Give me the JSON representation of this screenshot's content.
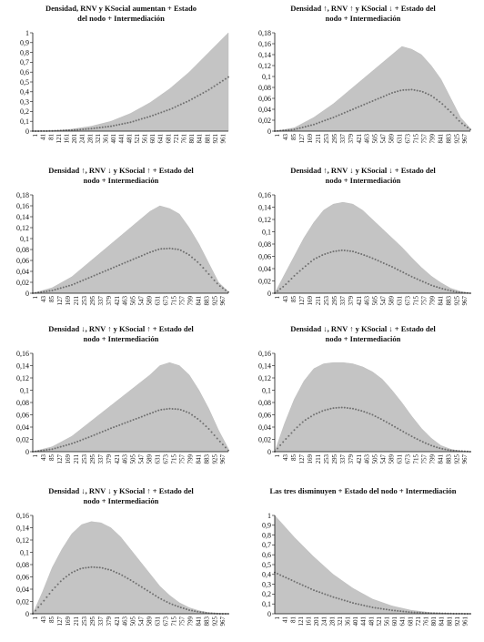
{
  "chart_data": [
    {
      "type": "area",
      "title": "Densidad, RNV y KSocial aumentan + Estado\ndel nodo + Intermediación",
      "x_ticks": [
        "1",
        "41",
        "81",
        "121",
        "161",
        "201",
        "241",
        "281",
        "321",
        "361",
        "401",
        "441",
        "481",
        "521",
        "561",
        "601",
        "641",
        "681",
        "721",
        "761",
        "801",
        "841",
        "881",
        "921",
        "961"
      ],
      "y_ticks": [
        "0",
        "0,1",
        "0,2",
        "0,3",
        "0,4",
        "0,5",
        "0,6",
        "0,7",
        "0,8",
        "0,9",
        "1"
      ],
      "ylim": [
        0,
        1
      ],
      "xlim": [
        1,
        1000
      ],
      "series": [
        {
          "style": "area",
          "x": [
            1,
            100,
            200,
            300,
            400,
            500,
            600,
            700,
            800,
            900,
            1000
          ],
          "values": [
            0,
            0.004,
            0.02,
            0.05,
            0.1,
            0.18,
            0.29,
            0.43,
            0.6,
            0.8,
            1.0
          ]
        },
        {
          "style": "dotted",
          "x": [
            1,
            100,
            200,
            300,
            400,
            500,
            600,
            700,
            800,
            900,
            1000
          ],
          "values": [
            0,
            0.002,
            0.01,
            0.025,
            0.05,
            0.09,
            0.15,
            0.22,
            0.31,
            0.42,
            0.55
          ]
        }
      ]
    },
    {
      "type": "area",
      "title": "Densidad ↑, RNV ↑ y KSocial ↓ + Estado del\nnodo + Intermediación",
      "x_ticks": [
        "1",
        "43",
        "85",
        "127",
        "169",
        "211",
        "253",
        "295",
        "337",
        "379",
        "421",
        "463",
        "505",
        "547",
        "589",
        "631",
        "673",
        "715",
        "757",
        "799",
        "841",
        "883",
        "925",
        "967"
      ],
      "y_ticks": [
        "0",
        "0,02",
        "0,04",
        "0,06",
        "0,08",
        "0,1",
        "0,12",
        "0,14",
        "0,16",
        "0,18"
      ],
      "ylim": [
        0,
        0.18
      ],
      "xlim": [
        1,
        1000
      ],
      "series": [
        {
          "style": "area",
          "x": [
            1,
            100,
            200,
            300,
            400,
            500,
            600,
            650,
            700,
            750,
            800,
            850,
            900,
            950,
            1000
          ],
          "values": [
            0,
            0.006,
            0.025,
            0.05,
            0.08,
            0.11,
            0.14,
            0.155,
            0.15,
            0.14,
            0.12,
            0.095,
            0.06,
            0.025,
            0.005
          ]
        },
        {
          "style": "dotted",
          "x": [
            1,
            100,
            200,
            300,
            400,
            500,
            600,
            650,
            700,
            750,
            800,
            850,
            900,
            950,
            1000
          ],
          "values": [
            0,
            0.003,
            0.012,
            0.025,
            0.04,
            0.055,
            0.07,
            0.075,
            0.076,
            0.073,
            0.065,
            0.052,
            0.035,
            0.016,
            0.003
          ]
        }
      ]
    },
    {
      "type": "area",
      "title": "Densidad ↑, RNV ↓ y KSocial ↑ + Estado del\nnodo + Intermediación",
      "x_ticks": [
        "1",
        "43",
        "85",
        "127",
        "169",
        "211",
        "253",
        "295",
        "337",
        "379",
        "421",
        "463",
        "505",
        "547",
        "589",
        "631",
        "673",
        "715",
        "757",
        "799",
        "841",
        "883",
        "925",
        "967"
      ],
      "y_ticks": [
        "0",
        "0,02",
        "0,04",
        "0,06",
        "0,08",
        "0,1",
        "0,12",
        "0,14",
        "0,16",
        "0,18"
      ],
      "ylim": [
        0,
        0.18
      ],
      "xlim": [
        1,
        1000
      ],
      "series": [
        {
          "style": "area",
          "x": [
            1,
            100,
            200,
            300,
            400,
            500,
            600,
            650,
            700,
            750,
            800,
            850,
            900,
            950,
            1000
          ],
          "values": [
            0,
            0.01,
            0.03,
            0.06,
            0.09,
            0.12,
            0.15,
            0.16,
            0.155,
            0.145,
            0.12,
            0.09,
            0.055,
            0.02,
            0.003
          ]
        },
        {
          "style": "dotted",
          "x": [
            1,
            100,
            200,
            300,
            400,
            500,
            600,
            650,
            700,
            750,
            800,
            850,
            900,
            950,
            1000
          ],
          "values": [
            0,
            0.005,
            0.015,
            0.03,
            0.045,
            0.06,
            0.075,
            0.081,
            0.082,
            0.08,
            0.07,
            0.055,
            0.035,
            0.015,
            0.002
          ]
        }
      ]
    },
    {
      "type": "area",
      "title": "Densidad ↑, RNV ↓ y KSocial ↓ + Estado del\nnodo + Intermediación",
      "x_ticks": [
        "1",
        "43",
        "85",
        "127",
        "169",
        "211",
        "253",
        "295",
        "337",
        "379",
        "421",
        "463",
        "505",
        "547",
        "589",
        "631",
        "673",
        "715",
        "757",
        "799",
        "841",
        "883",
        "925",
        "967"
      ],
      "y_ticks": [
        "0",
        "0,02",
        "0,04",
        "0,06",
        "0,08",
        "0,1",
        "0,12",
        "0,14",
        "0,16"
      ],
      "ylim": [
        0,
        0.16
      ],
      "xlim": [
        1,
        1000
      ],
      "series": [
        {
          "style": "area",
          "x": [
            1,
            50,
            100,
            150,
            200,
            250,
            300,
            350,
            400,
            450,
            500,
            550,
            600,
            650,
            700,
            750,
            800,
            850,
            900,
            950,
            1000
          ],
          "values": [
            0,
            0.03,
            0.06,
            0.09,
            0.115,
            0.135,
            0.145,
            0.148,
            0.145,
            0.135,
            0.12,
            0.105,
            0.09,
            0.075,
            0.058,
            0.042,
            0.028,
            0.017,
            0.008,
            0.003,
            0
          ]
        },
        {
          "style": "dotted",
          "x": [
            1,
            50,
            100,
            150,
            200,
            250,
            300,
            350,
            400,
            450,
            500,
            550,
            600,
            650,
            700,
            750,
            800,
            850,
            900,
            950,
            1000
          ],
          "values": [
            0,
            0.012,
            0.028,
            0.042,
            0.055,
            0.063,
            0.068,
            0.07,
            0.068,
            0.063,
            0.057,
            0.05,
            0.043,
            0.035,
            0.027,
            0.02,
            0.013,
            0.008,
            0.004,
            0.001,
            0
          ]
        }
      ]
    },
    {
      "type": "area",
      "title": "Densidad ↓, RNV ↑ y KSocial ↑ + Estado del\nnodo + Intermediación",
      "x_ticks": [
        "1",
        "43",
        "85",
        "127",
        "169",
        "211",
        "253",
        "295",
        "337",
        "379",
        "421",
        "463",
        "505",
        "547",
        "589",
        "631",
        "673",
        "715",
        "757",
        "799",
        "841",
        "883",
        "925",
        "967"
      ],
      "y_ticks": [
        "0",
        "0,02",
        "0,04",
        "0,06",
        "0,08",
        "0,1",
        "0,12",
        "0,14",
        "0,16"
      ],
      "ylim": [
        0,
        0.16
      ],
      "xlim": [
        1,
        1000
      ],
      "series": [
        {
          "style": "area",
          "x": [
            1,
            100,
            200,
            300,
            400,
            500,
            600,
            650,
            700,
            750,
            800,
            850,
            900,
            950,
            1000
          ],
          "values": [
            0,
            0.008,
            0.025,
            0.05,
            0.075,
            0.1,
            0.125,
            0.14,
            0.145,
            0.14,
            0.125,
            0.1,
            0.07,
            0.035,
            0.005
          ]
        },
        {
          "style": "dotted",
          "x": [
            1,
            100,
            200,
            300,
            400,
            500,
            600,
            650,
            700,
            750,
            800,
            850,
            900,
            950,
            1000
          ],
          "values": [
            0,
            0.004,
            0.013,
            0.025,
            0.038,
            0.05,
            0.062,
            0.068,
            0.07,
            0.069,
            0.063,
            0.052,
            0.037,
            0.019,
            0.002
          ]
        }
      ]
    },
    {
      "type": "area",
      "title": "Densidad ↓, RNV ↑ y KSocial ↓ + Estado del\nnodo + Intermediación",
      "x_ticks": [
        "1",
        "43",
        "85",
        "127",
        "169",
        "211",
        "253",
        "295",
        "337",
        "379",
        "421",
        "463",
        "505",
        "547",
        "589",
        "631",
        "673",
        "715",
        "757",
        "799",
        "841",
        "883",
        "925",
        "967"
      ],
      "y_ticks": [
        "0",
        "0,02",
        "0,04",
        "0,06",
        "0,08",
        "0,1",
        "0,12",
        "0,14",
        "0,16"
      ],
      "ylim": [
        0,
        0.16
      ],
      "xlim": [
        1,
        1000
      ],
      "series": [
        {
          "style": "area",
          "x": [
            1,
            50,
            100,
            150,
            200,
            250,
            300,
            350,
            400,
            450,
            500,
            550,
            600,
            650,
            700,
            750,
            800,
            850,
            900,
            950,
            1000
          ],
          "values": [
            0,
            0.045,
            0.085,
            0.115,
            0.135,
            0.143,
            0.145,
            0.145,
            0.143,
            0.138,
            0.13,
            0.118,
            0.1,
            0.08,
            0.058,
            0.038,
            0.022,
            0.01,
            0.004,
            0.001,
            0
          ]
        },
        {
          "style": "dotted",
          "x": [
            1,
            50,
            100,
            150,
            200,
            250,
            300,
            350,
            400,
            450,
            500,
            550,
            600,
            650,
            700,
            750,
            800,
            850,
            900,
            950,
            1000
          ],
          "values": [
            0,
            0.018,
            0.035,
            0.05,
            0.06,
            0.067,
            0.071,
            0.072,
            0.07,
            0.066,
            0.06,
            0.052,
            0.043,
            0.034,
            0.025,
            0.017,
            0.01,
            0.005,
            0.002,
            0.001,
            0
          ]
        }
      ]
    },
    {
      "type": "area",
      "title": "Densidad ↓, RNV ↓ y KSocial ↑ + Estado del\nnodo + Intermediación",
      "x_ticks": [
        "1",
        "43",
        "85",
        "127",
        "169",
        "211",
        "253",
        "295",
        "337",
        "379",
        "421",
        "463",
        "505",
        "547",
        "589",
        "631",
        "673",
        "715",
        "757",
        "799",
        "841",
        "883",
        "925",
        "967"
      ],
      "y_ticks": [
        "0",
        "0,02",
        "0,04",
        "0,06",
        "0,08",
        "0,1",
        "0,12",
        "0,14",
        "0,16"
      ],
      "ylim": [
        0,
        0.16
      ],
      "xlim": [
        1,
        1000
      ],
      "series": [
        {
          "style": "area",
          "x": [
            1,
            50,
            100,
            150,
            200,
            250,
            300,
            350,
            400,
            450,
            500,
            550,
            600,
            650,
            700,
            750,
            800,
            850,
            900,
            950,
            1000
          ],
          "values": [
            0,
            0.035,
            0.075,
            0.105,
            0.13,
            0.145,
            0.15,
            0.148,
            0.14,
            0.125,
            0.105,
            0.085,
            0.065,
            0.045,
            0.03,
            0.018,
            0.01,
            0.005,
            0.002,
            0.001,
            0
          ]
        },
        {
          "style": "dotted",
          "x": [
            1,
            50,
            100,
            150,
            200,
            250,
            300,
            350,
            400,
            450,
            500,
            550,
            600,
            650,
            700,
            750,
            800,
            850,
            900,
            950,
            1000
          ],
          "values": [
            0,
            0.018,
            0.038,
            0.055,
            0.067,
            0.074,
            0.076,
            0.075,
            0.071,
            0.064,
            0.055,
            0.045,
            0.035,
            0.025,
            0.017,
            0.011,
            0.006,
            0.003,
            0.001,
            0,
            0
          ]
        }
      ]
    },
    {
      "type": "area",
      "title": "Las tres disminuyen + Estado del nodo + Intermediación",
      "x_ticks": [
        "1",
        "41",
        "81",
        "121",
        "161",
        "201",
        "241",
        "281",
        "321",
        "361",
        "401",
        "441",
        "481",
        "521",
        "561",
        "601",
        "641",
        "681",
        "721",
        "761",
        "801",
        "841",
        "881",
        "921",
        "961"
      ],
      "y_ticks": [
        "0",
        "0,1",
        "0,2",
        "0,3",
        "0,4",
        "0,5",
        "0,6",
        "0,7",
        "0,8",
        "0,9",
        "1"
      ],
      "ylim": [
        0,
        1
      ],
      "xlim": [
        1,
        1000
      ],
      "series": [
        {
          "style": "area",
          "x": [
            1,
            100,
            200,
            300,
            400,
            500,
            600,
            700,
            800,
            900,
            1000
          ],
          "values": [
            1.0,
            0.78,
            0.58,
            0.4,
            0.26,
            0.15,
            0.08,
            0.035,
            0.012,
            0.004,
            0
          ]
        },
        {
          "style": "dotted",
          "x": [
            1,
            100,
            200,
            300,
            400,
            500,
            600,
            700,
            800,
            900,
            1000
          ],
          "values": [
            0.42,
            0.33,
            0.24,
            0.17,
            0.11,
            0.065,
            0.035,
            0.015,
            0.006,
            0.002,
            0
          ]
        }
      ]
    }
  ]
}
